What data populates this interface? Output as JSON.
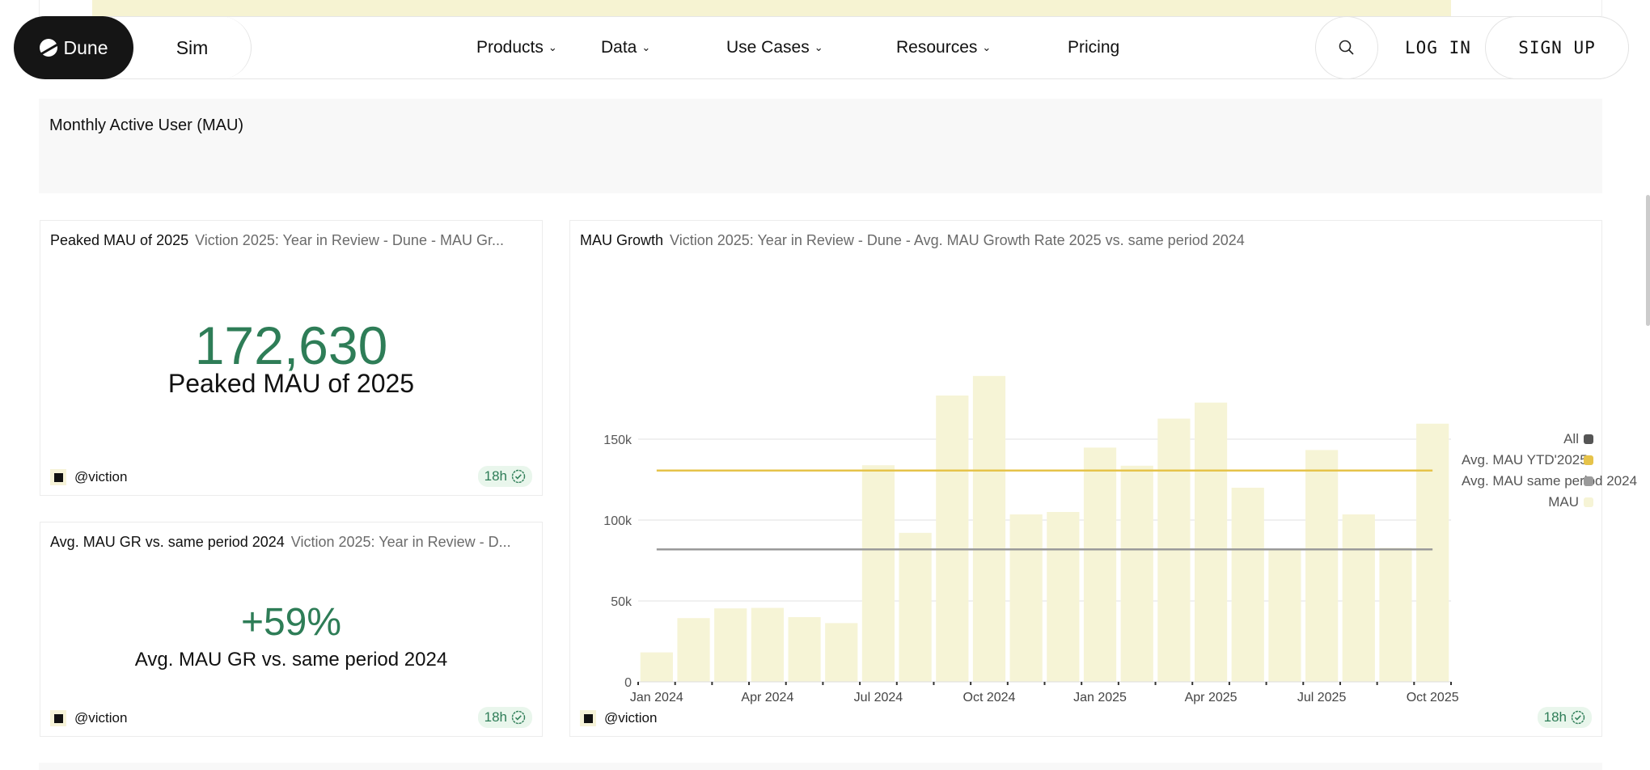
{
  "nav": {
    "brand": "Dune",
    "sim": "Sim",
    "menu": [
      {
        "label": "Products",
        "dropdown": true
      },
      {
        "label": "Data",
        "dropdown": true
      },
      {
        "label": "Use Cases",
        "dropdown": true
      },
      {
        "label": "Resources",
        "dropdown": true
      },
      {
        "label": "Pricing",
        "dropdown": false
      }
    ],
    "login": "LOG IN",
    "signup": "SIGN UP"
  },
  "section": {
    "title": "Monthly Active User (MAU)"
  },
  "cards": [
    {
      "title": "Peaked MAU of 2025",
      "subtitle": "Viction 2025: Year in Review - Dune - MAU Gr...",
      "value": "172,630",
      "label": "Peaked MAU of 2025",
      "owner": "@viction",
      "age": "18h"
    },
    {
      "title": "Avg. MAU GR vs. same period 2024",
      "subtitle": "Viction 2025: Year in Review - D...",
      "value": "+59%",
      "label": "Avg. MAU GR vs. same period 2024",
      "owner": "@viction",
      "age": "18h"
    }
  ],
  "chart_card": {
    "title": "MAU Growth",
    "subtitle": "Viction 2025: Year in Review - Dune - Avg. MAU Growth Rate 2025 vs. same period 2024",
    "owner": "@viction",
    "age": "18h"
  },
  "chart_data": {
    "type": "bar",
    "categories": [
      "Jan 2024",
      "Feb 2024",
      "Mar 2024",
      "Apr 2024",
      "May 2024",
      "Jun 2024",
      "Jul 2024",
      "Aug 2024",
      "Sep 2024",
      "Oct 2024",
      "Nov 2024",
      "Dec 2024",
      "Jan 2025",
      "Feb 2025",
      "Mar 2025",
      "Apr 2025",
      "May 2025",
      "Jun 2025",
      "Jul 2025",
      "Aug 2025",
      "Sep 2025",
      "Oct 2025"
    ],
    "x_tick_labels": [
      "Jan 2024",
      "Apr 2024",
      "Jul 2024",
      "Oct 2024",
      "Jan 2025",
      "Apr 2025",
      "Jul 2025",
      "Oct 2025"
    ],
    "y_tick_labels": [
      "0",
      "50k",
      "100k",
      "150k"
    ],
    "ylim": [
      0,
      200000
    ],
    "grid": true,
    "legend_position": "right",
    "series": [
      {
        "name": "MAU",
        "type": "bar",
        "color": "#f6f4d6",
        "values": [
          18200,
          39400,
          45400,
          45700,
          40000,
          36300,
          133900,
          92100,
          177000,
          189100,
          103500,
          105000,
          144800,
          133600,
          162700,
          172630,
          120000,
          81500,
          143300,
          103500,
          82800,
          159600
        ]
      },
      {
        "name": "Avg. MAU YTD'2025",
        "type": "line",
        "color": "#e6c34a",
        "value": 130600
      },
      {
        "name": "Avg. MAU same period 2024",
        "type": "line",
        "color": "#9a9a9a",
        "value": 81900
      }
    ],
    "legend": [
      {
        "label": "All",
        "color": "#555555"
      },
      {
        "label": "Avg. MAU YTD'2025",
        "color": "#e6c34a"
      },
      {
        "label": "Avg. MAU same period 2024",
        "color": "#9a9a9a"
      },
      {
        "label": "MAU",
        "color": "#f6f4d6"
      }
    ]
  }
}
